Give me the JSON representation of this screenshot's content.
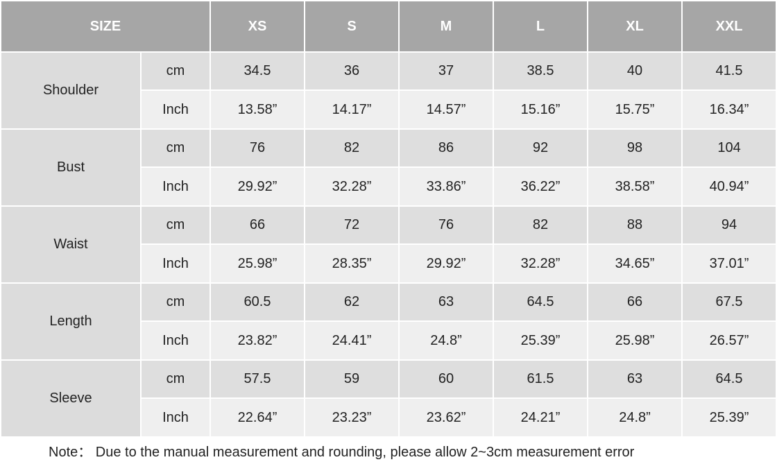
{
  "table": {
    "header": [
      "SIZE",
      "XS",
      "S",
      "M",
      "L",
      "XL",
      "XXL"
    ],
    "groups": [
      {
        "name": "Shoulder",
        "rows": [
          {
            "unit": "cm",
            "values": [
              "34.5",
              "36",
              "37",
              "38.5",
              "40",
              "41.5"
            ]
          },
          {
            "unit": "Inch",
            "values": [
              "13.58”",
              "14.17”",
              "14.57”",
              "15.16”",
              "15.75”",
              "16.34”"
            ]
          }
        ]
      },
      {
        "name": "Bust",
        "rows": [
          {
            "unit": "cm",
            "values": [
              "76",
              "82",
              "86",
              "92",
              "98",
              "104"
            ]
          },
          {
            "unit": "Inch",
            "values": [
              "29.92”",
              "32.28”",
              "33.86”",
              "36.22”",
              "38.58”",
              "40.94”"
            ]
          }
        ]
      },
      {
        "name": "Waist",
        "rows": [
          {
            "unit": "cm",
            "values": [
              "66",
              "72",
              "76",
              "82",
              "88",
              "94"
            ]
          },
          {
            "unit": "Inch",
            "values": [
              "25.98”",
              "28.35”",
              "29.92”",
              "32.28”",
              "34.65”",
              "37.01”"
            ]
          }
        ]
      },
      {
        "name": "Length",
        "rows": [
          {
            "unit": "cm",
            "values": [
              "60.5",
              "62",
              "63",
              "64.5",
              "66",
              "67.5"
            ]
          },
          {
            "unit": "Inch",
            "values": [
              "23.82”",
              "24.41”",
              "24.8”",
              "25.39”",
              "25.98”",
              "26.57”"
            ]
          }
        ]
      },
      {
        "name": "Sleeve",
        "rows": [
          {
            "unit": "cm",
            "values": [
              "57.5",
              "59",
              "60",
              "61.5",
              "63",
              "64.5"
            ]
          },
          {
            "unit": "Inch",
            "values": [
              "22.64”",
              "23.23”",
              "23.62”",
              "24.21”",
              "24.8”",
              "25.39”"
            ]
          }
        ]
      }
    ]
  },
  "note": "Note： Due to the manual measurement and rounding, please allow 2~3cm measurement error"
}
